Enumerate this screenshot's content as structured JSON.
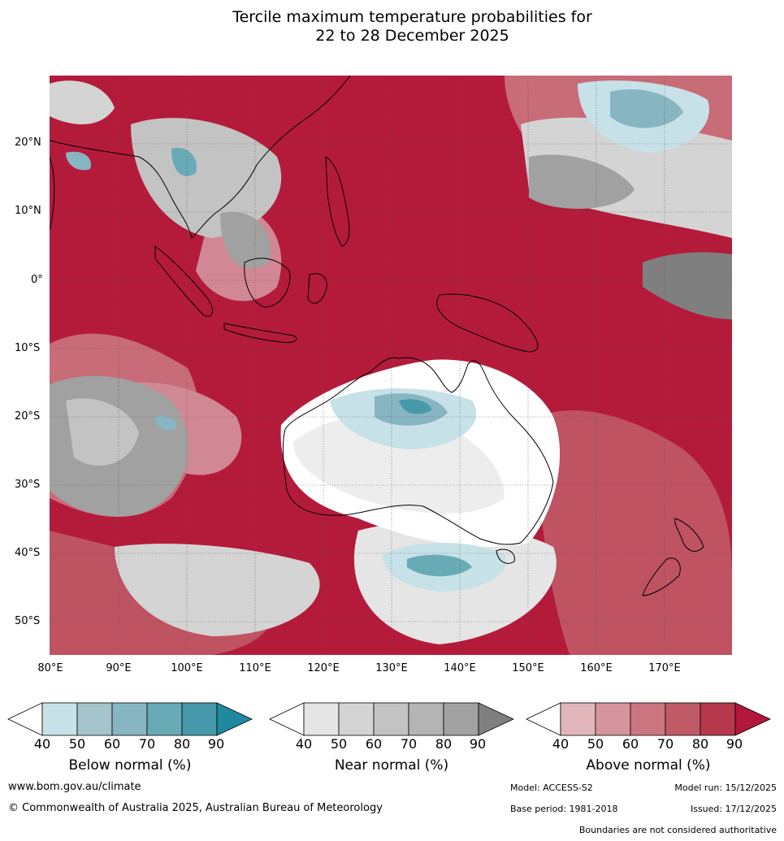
{
  "title_line1": "Tercile maximum temperature probabilities for",
  "title_line2": "22 to 28 December 2025",
  "lat_labels": [
    "20°N",
    "10°N",
    "0°",
    "10°S",
    "20°S",
    "30°S",
    "40°S",
    "50°S"
  ],
  "lon_labels": [
    "80°E",
    "90°E",
    "100°E",
    "110°E",
    "120°E",
    "130°E",
    "140°E",
    "150°E",
    "160°E",
    "170°E"
  ],
  "legend": {
    "ticks": [
      "40",
      "50",
      "60",
      "70",
      "80",
      "90"
    ],
    "below": {
      "title": "Below normal (%)",
      "colors": [
        "#ffffff",
        "#c6e1e7",
        "#a5c5cc",
        "#88b5c2",
        "#68abb7",
        "#4599ab",
        "#1f89a0"
      ]
    },
    "near": {
      "title": "Near normal (%)",
      "colors": [
        "#ffffff",
        "#e5e5e5",
        "#d4d4d4",
        "#c3c3c3",
        "#b4b4b4",
        "#a1a1a1",
        "#7f7f7f"
      ]
    },
    "above": {
      "title": "Above normal (%)",
      "colors": [
        "#ffffff",
        "#e1b6bb",
        "#d4959e",
        "#ca757f",
        "#c05a67",
        "#b6384c",
        "#b1183a"
      ]
    }
  },
  "footer": {
    "website": "www.bom.gov.au/climate",
    "copyright": "© Commonwealth of Australia 2025, Australian Bureau of Meteorology",
    "model": "Model: ACCESS-S2",
    "model_run": "Model run: 15/12/2025",
    "base_period": "Base period: 1981-2018",
    "issued": "Issued: 17/12/2025",
    "disclaimer": "Boundaries are not considered authoritative"
  }
}
